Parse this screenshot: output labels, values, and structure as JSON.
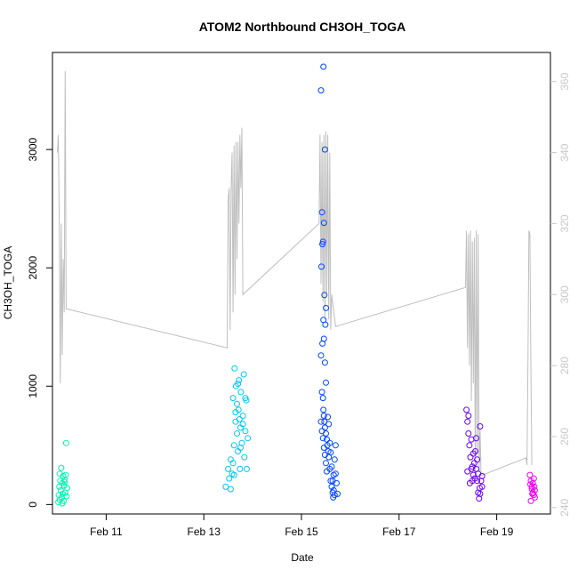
{
  "chart_data": {
    "type": "scatter",
    "title": "ATOM2 Northbound CH3OH_TOGA",
    "xlabel": "Date",
    "ylabel": "CH3OH_TOGA",
    "x_ticks": [
      "Feb 11",
      "Feb 13",
      "Feb 15",
      "Feb 17",
      "Feb 19"
    ],
    "x_tick_days": [
      11,
      13,
      15,
      17,
      19
    ],
    "xlim": [
      9.9,
      20.1
    ],
    "y_ticks": [
      0,
      1000,
      2000,
      3000
    ],
    "ylim": [
      -80,
      3820
    ],
    "y2_ticks": [
      240,
      260,
      280,
      300,
      320,
      340,
      360
    ],
    "y2lim": [
      238.2,
      368.2
    ],
    "grid": false,
    "scatter_colors": [
      "#00f5b0",
      "#00c8f0",
      "#0046ff",
      "#6a00f0",
      "#f000f0"
    ],
    "line_color": "#bebebe",
    "series": [
      {
        "values": [
          [
            10.02,
            20
          ],
          [
            10.03,
            80
          ],
          [
            10.04,
            150
          ],
          [
            10.05,
            40
          ],
          [
            10.06,
            200
          ],
          [
            10.07,
            120
          ],
          [
            10.08,
            310
          ],
          [
            10.09,
            60
          ],
          [
            10.1,
            180
          ],
          [
            10.11,
            90
          ],
          [
            10.12,
            240
          ],
          [
            10.13,
            30
          ],
          [
            10.14,
            160
          ],
          [
            10.15,
            210
          ],
          [
            10.16,
            100
          ],
          [
            10.17,
            250
          ],
          [
            10.18,
            520
          ],
          [
            10.19,
            70
          ],
          [
            10.2,
            140
          ],
          [
            10.05,
            260
          ],
          [
            10.1,
            10
          ],
          [
            10.15,
            190
          ]
        ]
      },
      {
        "values": [
          [
            13.45,
            150
          ],
          [
            13.5,
            300
          ],
          [
            13.52,
            220
          ],
          [
            13.55,
            380
          ],
          [
            13.58,
            260
          ],
          [
            13.6,
            900
          ],
          [
            13.62,
            500
          ],
          [
            13.63,
            1150
          ],
          [
            13.65,
            700
          ],
          [
            13.66,
            1000
          ],
          [
            13.68,
            600
          ],
          [
            13.7,
            450
          ],
          [
            13.71,
            800
          ],
          [
            13.72,
            1050
          ],
          [
            13.74,
            300
          ],
          [
            13.75,
            650
          ],
          [
            13.76,
            950
          ],
          [
            13.78,
            520
          ],
          [
            13.8,
            750
          ],
          [
            13.82,
            1100
          ],
          [
            13.83,
            400
          ],
          [
            13.85,
            620
          ],
          [
            13.87,
            880
          ],
          [
            13.88,
            300
          ],
          [
            13.9,
            560
          ],
          [
            13.55,
            130
          ],
          [
            13.6,
            350
          ],
          [
            13.65,
            780
          ],
          [
            13.7,
            1020
          ],
          [
            13.75,
            480
          ],
          [
            13.8,
            680
          ],
          [
            13.85,
            900
          ],
          [
            13.62,
            250
          ],
          [
            13.68,
            850
          ],
          [
            13.73,
            720
          ]
        ]
      },
      {
        "values": [
          [
            15.4,
            3500
          ],
          [
            15.45,
            3700
          ],
          [
            15.48,
            3000
          ],
          [
            15.42,
            2470
          ],
          [
            15.46,
            2380
          ],
          [
            15.44,
            2220
          ],
          [
            15.43,
            2200
          ],
          [
            15.41,
            2010
          ],
          [
            15.47,
            1770
          ],
          [
            15.5,
            1660
          ],
          [
            15.45,
            1560
          ],
          [
            15.49,
            1520
          ],
          [
            15.43,
            1360
          ],
          [
            15.46,
            1400
          ],
          [
            15.48,
            1200
          ],
          [
            15.4,
            1260
          ],
          [
            15.5,
            1030
          ],
          [
            15.42,
            950
          ],
          [
            15.44,
            900
          ],
          [
            15.45,
            800
          ],
          [
            15.46,
            750
          ],
          [
            15.47,
            700
          ],
          [
            15.48,
            650
          ],
          [
            15.5,
            600
          ],
          [
            15.52,
            550
          ],
          [
            15.53,
            500
          ],
          [
            15.55,
            450
          ],
          [
            15.56,
            400
          ],
          [
            15.58,
            300
          ],
          [
            15.6,
            200
          ],
          [
            15.62,
            150
          ],
          [
            15.64,
            100
          ],
          [
            15.65,
            60
          ],
          [
            15.66,
            250
          ],
          [
            15.68,
            380
          ],
          [
            15.7,
            500
          ],
          [
            15.72,
            180
          ],
          [
            15.74,
            90
          ],
          [
            15.4,
            700
          ],
          [
            15.42,
            620
          ],
          [
            15.44,
            560
          ],
          [
            15.46,
            480
          ],
          [
            15.48,
            420
          ],
          [
            15.5,
            350
          ],
          [
            15.52,
            280
          ],
          [
            15.54,
            740
          ],
          [
            15.56,
            680
          ],
          [
            15.58,
            520
          ],
          [
            15.6,
            440
          ],
          [
            15.62,
            320
          ],
          [
            15.64,
            200
          ],
          [
            15.66,
            120
          ],
          [
            15.68,
            80
          ],
          [
            15.7,
            260
          ]
        ]
      },
      {
        "values": [
          [
            18.38,
            800
          ],
          [
            18.4,
            700
          ],
          [
            18.42,
            600
          ],
          [
            18.44,
            500
          ],
          [
            18.46,
            400
          ],
          [
            18.48,
            300
          ],
          [
            18.5,
            200
          ],
          [
            18.52,
            250
          ],
          [
            18.54,
            350
          ],
          [
            18.56,
            450
          ],
          [
            18.58,
            300
          ],
          [
            18.6,
            200
          ],
          [
            18.62,
            100
          ],
          [
            18.64,
            50
          ],
          [
            18.66,
            660
          ],
          [
            18.68,
            200
          ],
          [
            18.7,
            150
          ],
          [
            18.4,
            280
          ],
          [
            18.45,
            180
          ],
          [
            18.5,
            320
          ],
          [
            18.55,
            220
          ],
          [
            18.6,
            380
          ],
          [
            18.65,
            140
          ],
          [
            18.7,
            240
          ],
          [
            18.42,
            750
          ],
          [
            18.48,
            550
          ],
          [
            18.52,
            430
          ],
          [
            18.58,
            560
          ],
          [
            18.62,
            260
          ],
          [
            18.66,
            90
          ]
        ]
      },
      {
        "values": [
          [
            19.68,
            250
          ],
          [
            19.7,
            200
          ],
          [
            19.72,
            150
          ],
          [
            19.74,
            100
          ],
          [
            19.76,
            80
          ],
          [
            19.78,
            60
          ],
          [
            19.7,
            30
          ],
          [
            19.72,
            130
          ],
          [
            19.74,
            180
          ],
          [
            19.76,
            220
          ],
          [
            19.78,
            120
          ],
          [
            19.69,
            170
          ],
          [
            19.73,
            90
          ],
          [
            19.77,
            150
          ]
        ]
      }
    ],
    "line_values": [
      [
        10.0,
        340
      ],
      [
        10.02,
        345
      ],
      [
        10.04,
        320
      ],
      [
        10.06,
        275
      ],
      [
        10.08,
        320
      ],
      [
        10.1,
        283
      ],
      [
        10.12,
        310
      ],
      [
        10.14,
        295
      ],
      [
        10.16,
        363
      ],
      [
        10.18,
        296
      ],
      [
        13.48,
        285
      ],
      [
        13.5,
        327
      ],
      [
        13.52,
        330
      ],
      [
        13.54,
        290
      ],
      [
        13.56,
        330
      ],
      [
        13.58,
        340
      ],
      [
        13.6,
        295
      ],
      [
        13.62,
        342
      ],
      [
        13.64,
        300
      ],
      [
        13.66,
        343
      ],
      [
        13.68,
        310
      ],
      [
        13.7,
        343
      ],
      [
        13.72,
        320
      ],
      [
        13.74,
        345
      ],
      [
        13.76,
        330
      ],
      [
        13.78,
        347
      ],
      [
        13.8,
        300
      ],
      [
        15.36,
        320
      ],
      [
        15.38,
        345
      ],
      [
        15.4,
        303
      ],
      [
        15.42,
        343
      ],
      [
        15.44,
        298
      ],
      [
        15.46,
        345
      ],
      [
        15.48,
        293
      ],
      [
        15.5,
        346
      ],
      [
        15.52,
        300
      ],
      [
        15.54,
        345
      ],
      [
        15.56,
        293
      ],
      [
        15.58,
        340
      ],
      [
        15.6,
        290
      ],
      [
        15.62,
        300
      ],
      [
        15.7,
        291
      ],
      [
        18.36,
        302
      ],
      [
        18.38,
        318
      ],
      [
        18.4,
        285
      ],
      [
        18.42,
        317
      ],
      [
        18.44,
        280
      ],
      [
        18.46,
        318
      ],
      [
        18.48,
        270
      ],
      [
        18.5,
        315
      ],
      [
        18.52,
        275
      ],
      [
        18.54,
        316
      ],
      [
        18.56,
        248
      ],
      [
        18.58,
        318
      ],
      [
        18.6,
        255
      ],
      [
        18.62,
        317
      ],
      [
        18.64,
        250
      ],
      [
        18.66,
        262
      ],
      [
        18.68,
        249
      ],
      [
        19.6,
        254
      ],
      [
        19.62,
        252
      ],
      [
        19.64,
        280
      ],
      [
        19.66,
        318
      ],
      [
        19.68,
        317
      ],
      [
        19.7,
        280
      ],
      [
        19.72,
        252
      ]
    ]
  }
}
